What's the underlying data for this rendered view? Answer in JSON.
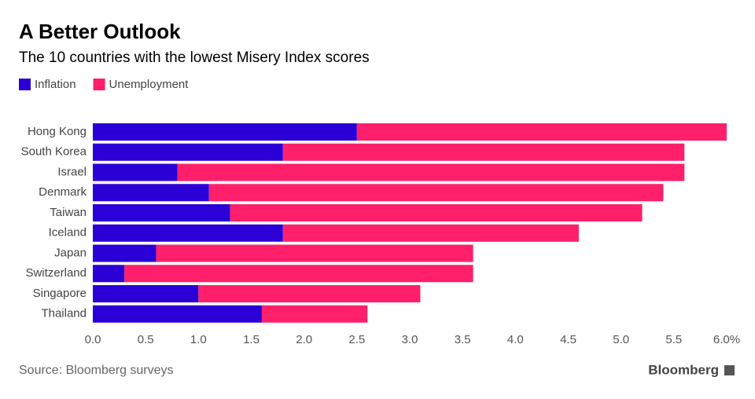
{
  "chart_data": {
    "type": "stacked-barh",
    "title": "A Better Outlook",
    "subtitle": "The 10 countries with the lowest Misery Index scores",
    "source": "Source: Bloomberg surveys",
    "brand": "Bloomberg",
    "categories": [
      "Hong Kong",
      "South Korea",
      "Israel",
      "Denmark",
      "Taiwan",
      "Iceland",
      "Japan",
      "Switzerland",
      "Singapore",
      "Thailand"
    ],
    "series": [
      {
        "name": "Inflation",
        "color": "#2b00d6",
        "values": [
          2.5,
          1.8,
          0.8,
          1.1,
          1.3,
          1.8,
          0.6,
          0.3,
          1.0,
          1.6
        ]
      },
      {
        "name": "Unemployment",
        "color": "#ff1f6b",
        "values": [
          3.5,
          3.8,
          4.8,
          4.3,
          3.9,
          2.8,
          3.0,
          3.3,
          2.1,
          1.0
        ]
      }
    ],
    "xlim": [
      0,
      6
    ],
    "xticks": [
      {
        "value": 0,
        "label": "0.0"
      },
      0.5,
      {
        "value": 1,
        "label": "1.0"
      },
      1.5,
      {
        "value": 2,
        "label": "2.0"
      },
      2.5,
      {
        "value": 3,
        "label": "3.0"
      },
      3.5,
      {
        "value": 4,
        "label": "4.0"
      },
      4.5,
      {
        "value": 5,
        "label": "5.0"
      },
      5.5,
      {
        "value": 6,
        "label": "6.0%"
      }
    ]
  }
}
